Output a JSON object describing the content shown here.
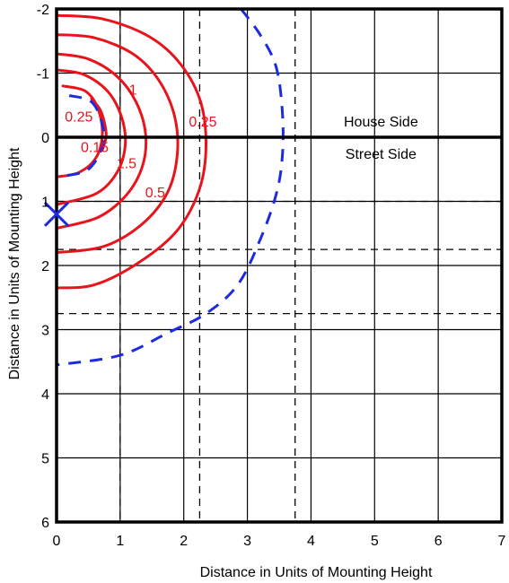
{
  "chart_data": {
    "type": "line",
    "xlabel": "Distance in Units of Mounting Height",
    "ylabel": "Distance in Units of Mounting Height",
    "xlim": [
      0,
      7
    ],
    "ylim": [
      -2,
      6
    ],
    "y_axis_inverted": true,
    "x_ticks": [
      "0",
      "1",
      "2",
      "3",
      "4",
      "5",
      "6",
      "7"
    ],
    "y_ticks": [
      "-2",
      "-1",
      "0",
      "1",
      "2",
      "3",
      "4",
      "5",
      "6"
    ],
    "grid": true,
    "dashed_grid_x": [
      1,
      2.25,
      3.75
    ],
    "dashed_grid_y": [
      1,
      1.75,
      2.75
    ],
    "house_street_divider_y": 0,
    "regions": [
      {
        "text": "House Side",
        "x": 5.1,
        "y": -0.25
      },
      {
        "text": "Street Side",
        "x": 5.1,
        "y": 0.25
      }
    ],
    "luminaire_marker": {
      "symbol": "X",
      "x": 0,
      "y": 1.2
    },
    "isofootcandle_series": [
      {
        "label": "0.25",
        "color": "#e8141c",
        "label_pos": [
          2.3,
          -0.25
        ],
        "points": [
          [
            0,
            -1.9
          ],
          [
            0.7,
            -1.85
          ],
          [
            1.4,
            -1.6
          ],
          [
            1.9,
            -1.2
          ],
          [
            2.25,
            -0.6
          ],
          [
            2.35,
            0.1
          ],
          [
            2.25,
            0.8
          ],
          [
            1.9,
            1.45
          ],
          [
            1.3,
            1.95
          ],
          [
            0.6,
            2.3
          ],
          [
            0,
            2.35
          ]
        ]
      },
      {
        "label": "0.5",
        "color": "#e8141c",
        "label_pos": [
          1.55,
          0.85
        ],
        "points": [
          [
            0,
            -1.6
          ],
          [
            0.6,
            -1.55
          ],
          [
            1.2,
            -1.3
          ],
          [
            1.6,
            -0.9
          ],
          [
            1.85,
            -0.35
          ],
          [
            1.9,
            0.25
          ],
          [
            1.75,
            0.85
          ],
          [
            1.35,
            1.35
          ],
          [
            0.75,
            1.7
          ],
          [
            0,
            1.8
          ]
        ]
      },
      {
        "label": "1",
        "color": "#e8141c",
        "label_pos": [
          1.2,
          -0.75
        ],
        "points": [
          [
            0,
            -1.3
          ],
          [
            0.5,
            -1.22
          ],
          [
            0.95,
            -0.95
          ],
          [
            1.25,
            -0.55
          ],
          [
            1.4,
            -0.05
          ],
          [
            1.35,
            0.45
          ],
          [
            1.1,
            0.9
          ],
          [
            0.65,
            1.25
          ],
          [
            0,
            1.42
          ]
        ]
      },
      {
        "label": "1.5",
        "color": "#e8141c",
        "label_pos": [
          1.1,
          0.4
        ],
        "points": [
          [
            0,
            -1.05
          ],
          [
            0.42,
            -0.98
          ],
          [
            0.8,
            -0.72
          ],
          [
            1.02,
            -0.32
          ],
          [
            1.08,
            0.12
          ],
          [
            0.95,
            0.55
          ],
          [
            0.62,
            0.88
          ],
          [
            0,
            1.05
          ]
        ]
      },
      {
        "label": "0.25",
        "color": "#e8141c",
        "label_pos": [
          0.35,
          -0.33
        ],
        "points": [
          [
            0.1,
            -0.8
          ],
          [
            0.45,
            -0.72
          ],
          [
            0.65,
            -0.45
          ],
          [
            0.72,
            -0.05
          ],
          [
            0.62,
            0.32
          ],
          [
            0.35,
            0.55
          ],
          [
            0,
            0.62
          ]
        ]
      },
      {
        "label": "0.15",
        "color": "#e8141c",
        "label_pos": [
          0.6,
          0.15
        ],
        "points": [
          [
            0.55,
            -0.6
          ],
          [
            0.7,
            -0.4
          ],
          [
            0.78,
            -0.05
          ],
          [
            0.72,
            0.2
          ]
        ]
      }
    ],
    "blue_dashed_series": [
      {
        "color": "#1c2be0",
        "points": [
          [
            2.9,
            -2.0
          ],
          [
            3.2,
            -1.6
          ],
          [
            3.45,
            -1.1
          ],
          [
            3.55,
            -0.4
          ],
          [
            3.55,
            0.3
          ],
          [
            3.45,
            0.9
          ],
          [
            3.2,
            1.6
          ],
          [
            2.85,
            2.3
          ],
          [
            2.35,
            2.75
          ],
          [
            1.75,
            3.05
          ],
          [
            1.0,
            3.4
          ],
          [
            0,
            3.55
          ]
        ]
      },
      {
        "color": "#1c2be0",
        "points": [
          [
            0.2,
            -0.65
          ],
          [
            0.55,
            -0.55
          ],
          [
            0.72,
            -0.2
          ],
          [
            0.72,
            0.15
          ],
          [
            0.5,
            0.5
          ],
          [
            0.15,
            0.6
          ]
        ]
      }
    ]
  }
}
